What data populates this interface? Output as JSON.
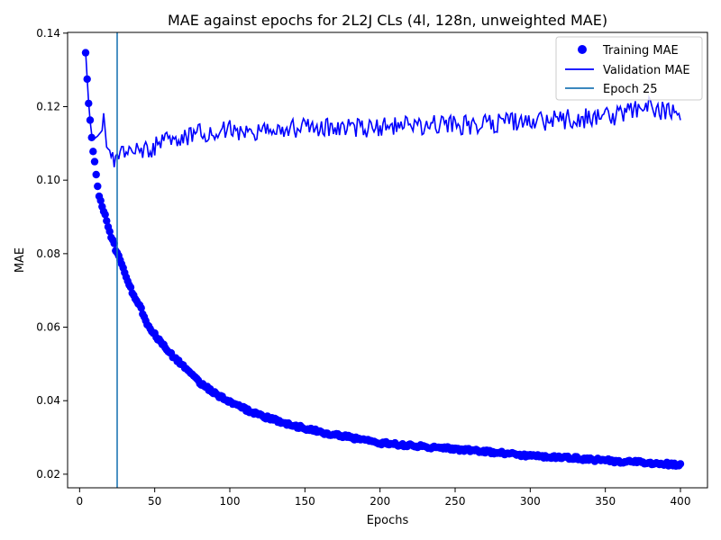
{
  "chart_data": {
    "type": "line",
    "title": "MAE against epochs for 2L2J CLs (4l, 128n, unweighted MAE)",
    "xlabel": "Epochs",
    "ylabel": "MAE",
    "xlim": [
      -8,
      418
    ],
    "ylim": [
      0.0163,
      0.1402
    ],
    "xticks": [
      0,
      50,
      100,
      150,
      200,
      250,
      300,
      350,
      400
    ],
    "xtick_labels": [
      "0",
      "50",
      "100",
      "150",
      "200",
      "250",
      "300",
      "350",
      "400"
    ],
    "yticks": [
      0.02,
      0.04,
      0.06,
      0.08,
      0.1,
      0.12,
      0.14
    ],
    "ytick_labels": [
      "0.02",
      "0.04",
      "0.06",
      "0.08",
      "0.10",
      "0.12",
      "0.14"
    ],
    "grid": false,
    "legend_position": "top-right",
    "series": [
      {
        "name": "Training MAE",
        "style": "points",
        "color": "#0000ff",
        "x_start": 4,
        "x_end": 400,
        "keypoints": [
          [
            4,
            0.135
          ],
          [
            5,
            0.1278
          ],
          [
            6,
            0.1213
          ],
          [
            7,
            0.1161
          ],
          [
            8,
            0.1113
          ],
          [
            9,
            0.1075
          ],
          [
            10,
            0.1048
          ],
          [
            11,
            0.1011
          ],
          [
            12,
            0.0985
          ],
          [
            13,
            0.0955
          ],
          [
            15,
            0.093
          ],
          [
            18,
            0.089
          ],
          [
            20,
            0.086
          ],
          [
            25,
            0.08
          ],
          [
            30,
            0.075
          ],
          [
            35,
            0.0695
          ],
          [
            40,
            0.066
          ],
          [
            45,
            0.061
          ],
          [
            50,
            0.058
          ],
          [
            60,
            0.053
          ],
          [
            70,
            0.049
          ],
          [
            80,
            0.045
          ],
          [
            90,
            0.042
          ],
          [
            100,
            0.0395
          ],
          [
            120,
            0.036
          ],
          [
            140,
            0.0335
          ],
          [
            160,
            0.0315
          ],
          [
            180,
            0.03
          ],
          [
            200,
            0.0285
          ],
          [
            225,
            0.0277
          ],
          [
            250,
            0.0268
          ],
          [
            275,
            0.026
          ],
          [
            300,
            0.025
          ],
          [
            325,
            0.0245
          ],
          [
            350,
            0.0237
          ],
          [
            375,
            0.0232
          ],
          [
            400,
            0.0225
          ]
        ]
      },
      {
        "name": "Validation MAE",
        "style": "line",
        "color": "#0000ff",
        "x_start": 4,
        "x_end": 400,
        "keypoints": [
          [
            4,
            0.135
          ],
          [
            5,
            0.1278
          ],
          [
            6,
            0.1213
          ],
          [
            7,
            0.1161
          ],
          [
            8,
            0.1125
          ],
          [
            9,
            0.111
          ],
          [
            12,
            0.112
          ],
          [
            15,
            0.1135
          ],
          [
            16,
            0.1182
          ],
          [
            18,
            0.109
          ],
          [
            22,
            0.107
          ],
          [
            25,
            0.1045
          ],
          [
            30,
            0.1085
          ],
          [
            40,
            0.1075
          ],
          [
            50,
            0.109
          ],
          [
            60,
            0.111
          ],
          [
            80,
            0.113
          ],
          [
            100,
            0.1135
          ],
          [
            150,
            0.114
          ],
          [
            200,
            0.1145
          ],
          [
            250,
            0.115
          ],
          [
            300,
            0.116
          ],
          [
            350,
            0.117
          ],
          [
            378,
            0.12
          ],
          [
            400,
            0.1175
          ]
        ]
      },
      {
        "name": "Epoch 25",
        "style": "vline",
        "color": "#1f77b4",
        "x": 25
      }
    ]
  }
}
